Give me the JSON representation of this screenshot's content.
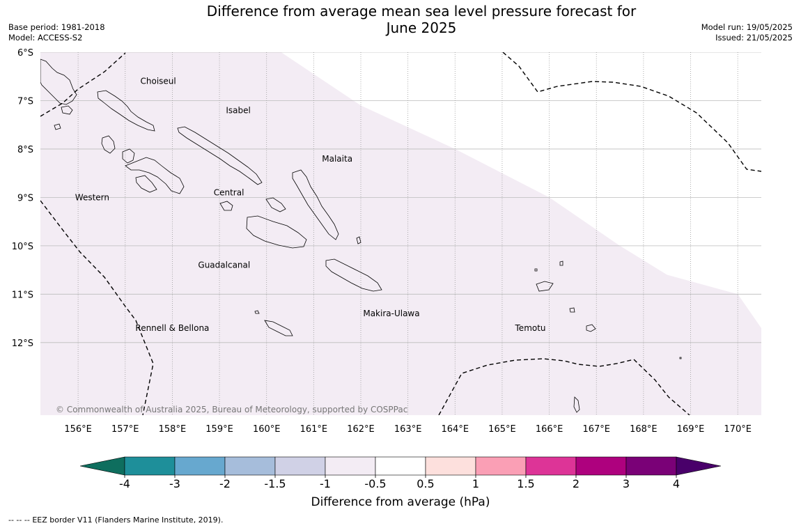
{
  "header": {
    "title": "Difference from average mean sea level pressure forecast for\nJune 2025",
    "base_period": "Base period: 1981-2018",
    "model": "Model: ACCESS-S2",
    "model_run": "Model run: 19/05/2025",
    "issued": "Issued: 21/05/2025"
  },
  "map": {
    "lon_range": [
      155.2,
      170.5
    ],
    "lat_range": [
      -6.0,
      -13.5
    ],
    "lat_ticks": [
      {
        "value": -6,
        "label": "6°S"
      },
      {
        "value": -7,
        "label": "7°S"
      },
      {
        "value": -8,
        "label": "8°S"
      },
      {
        "value": -9,
        "label": "9°S"
      },
      {
        "value": -10,
        "label": "10°S"
      },
      {
        "value": -11,
        "label": "11°S"
      },
      {
        "value": -12,
        "label": "12°S"
      }
    ],
    "lon_ticks": [
      {
        "value": 156,
        "label": "156°E"
      },
      {
        "value": 157,
        "label": "157°E"
      },
      {
        "value": 158,
        "label": "158°E"
      },
      {
        "value": 159,
        "label": "159°E"
      },
      {
        "value": 160,
        "label": "160°E"
      },
      {
        "value": 161,
        "label": "161°E"
      },
      {
        "value": 162,
        "label": "162°E"
      },
      {
        "value": 163,
        "label": "163°E"
      },
      {
        "value": 164,
        "label": "164°E"
      },
      {
        "value": 165,
        "label": "165°E"
      },
      {
        "value": 166,
        "label": "166°E"
      },
      {
        "value": 167,
        "label": "167°E"
      },
      {
        "value": 168,
        "label": "168°E"
      },
      {
        "value": 169,
        "label": "169°E"
      },
      {
        "value": 170,
        "label": "170°E"
      }
    ],
    "fill_region": {
      "category": "-1 to -0.5",
      "color": "#f3ecf4",
      "boundary": [
        [
          160.0,
          -5.8
        ],
        [
          162.0,
          -7.1
        ],
        [
          164.0,
          -8.0
        ],
        [
          166.0,
          -9.0
        ],
        [
          167.5,
          -10.0
        ],
        [
          168.5,
          -10.6
        ],
        [
          170.0,
          -11.0
        ],
        [
          170.5,
          -11.7
        ]
      ]
    },
    "provinces": [
      {
        "name": "Choiseul",
        "lon": 157.7,
        "lat": -6.6
      },
      {
        "name": "Isabel",
        "lon": 159.4,
        "lat": -7.2
      },
      {
        "name": "Malaita",
        "lon": 161.5,
        "lat": -8.2
      },
      {
        "name": "Western",
        "lon": 156.3,
        "lat": -9.0
      },
      {
        "name": "Central",
        "lon": 159.2,
        "lat": -8.9
      },
      {
        "name": "Guadalcanal",
        "lon": 159.1,
        "lat": -10.4
      },
      {
        "name": "Makira-Ulawa",
        "lon": 162.65,
        "lat": -11.4
      },
      {
        "name": "Temotu",
        "lon": 165.6,
        "lat": -11.7
      },
      {
        "name": "Rennell & Bellona",
        "lon": 158.0,
        "lat": -11.7
      }
    ],
    "copyright": "© Commonwealth of Australia 2025, Bureau of Meteorology, supported by COSPPac"
  },
  "colorbar": {
    "bins": [
      {
        "from": -99,
        "to": -4,
        "color": "#0e6e5e"
      },
      {
        "from": -4,
        "to": -3,
        "color": "#1e8f9a"
      },
      {
        "from": -3,
        "to": -2,
        "color": "#67a8cf"
      },
      {
        "from": -2,
        "to": -1.5,
        "color": "#a6bddb"
      },
      {
        "from": -1.5,
        "to": -1,
        "color": "#d0d1e6"
      },
      {
        "from": -1,
        "to": -0.5,
        "color": "#f3ecf4"
      },
      {
        "from": -0.5,
        "to": 0.5,
        "color": "#ffffff"
      },
      {
        "from": 0.5,
        "to": 1,
        "color": "#fde0dd"
      },
      {
        "from": 1,
        "to": 1.5,
        "color": "#fa9fb5"
      },
      {
        "from": 1.5,
        "to": 2,
        "color": "#dd3497"
      },
      {
        "from": 2,
        "to": 3,
        "color": "#ae017e"
      },
      {
        "from": 3,
        "to": 4,
        "color": "#7a0177"
      },
      {
        "from": 4,
        "to": 99,
        "color": "#49006a"
      }
    ],
    "tick_labels": [
      "-4",
      "-3",
      "-2",
      "-1.5",
      "-1",
      "-0.5",
      "0.5",
      "1",
      "1.5",
      "2",
      "3",
      "4"
    ],
    "label": "Difference from average (hPa)"
  },
  "footer": {
    "legend_symbol": "-- -- --",
    "legend_text": "EEZ border V11 (Flanders Marine Institute, 2019)."
  }
}
